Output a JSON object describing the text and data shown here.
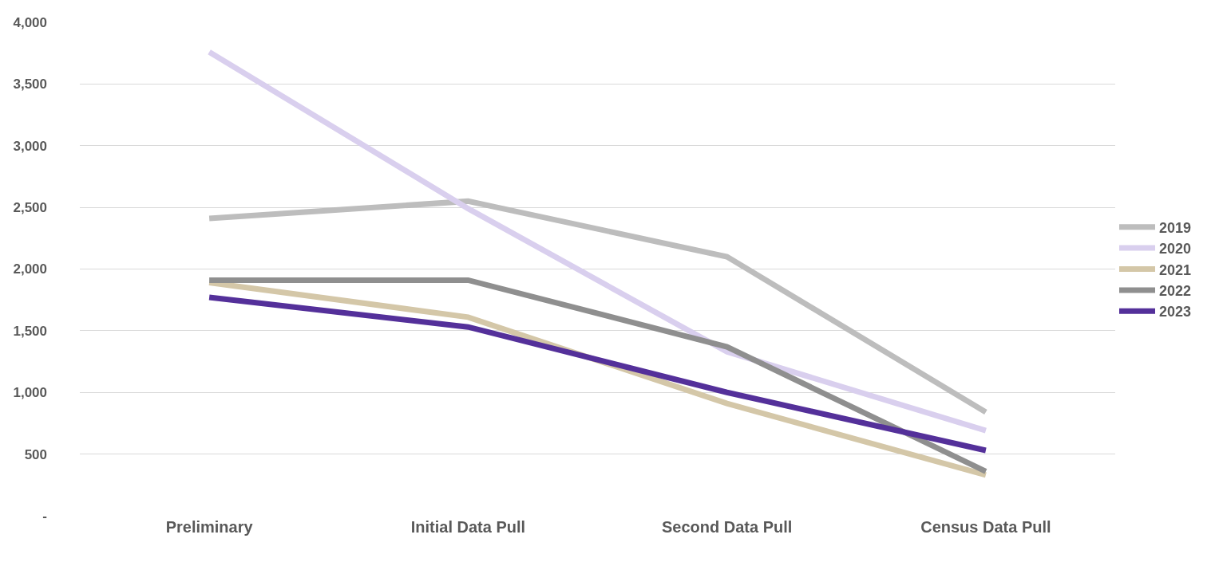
{
  "chart_data": {
    "type": "line",
    "categories": [
      "Preliminary",
      "Initial Data Pull",
      "Second Data Pull",
      "Census Data Pull"
    ],
    "series": [
      {
        "name": "2019",
        "color": "#bdbdbd",
        "values": [
          2410,
          2550,
          2100,
          840
        ]
      },
      {
        "name": "2020",
        "color": "#d9cfee",
        "values": [
          3760,
          2490,
          1330,
          690
        ]
      },
      {
        "name": "2021",
        "color": "#d4c7a8",
        "values": [
          1890,
          1610,
          910,
          330
        ]
      },
      {
        "name": "2022",
        "color": "#8f8f8f",
        "values": [
          1910,
          1910,
          1370,
          360
        ]
      },
      {
        "name": "2023",
        "color": "#54309a",
        "values": [
          1770,
          1530,
          1000,
          530
        ]
      }
    ],
    "ylim": [
      0,
      4000
    ],
    "yticks": [
      {
        "value": 0,
        "label": "-"
      },
      {
        "value": 500,
        "label": "500"
      },
      {
        "value": 1000,
        "label": "1,000"
      },
      {
        "value": 1500,
        "label": "1,500"
      },
      {
        "value": 2000,
        "label": "2,000"
      },
      {
        "value": 2500,
        "label": "2,500"
      },
      {
        "value": 3000,
        "label": "3,000"
      },
      {
        "value": 3500,
        "label": "3,500"
      },
      {
        "value": 4000,
        "label": "4,000"
      }
    ],
    "grid": "y",
    "legend": "right",
    "marker": "none",
    "line_style": "solid"
  }
}
